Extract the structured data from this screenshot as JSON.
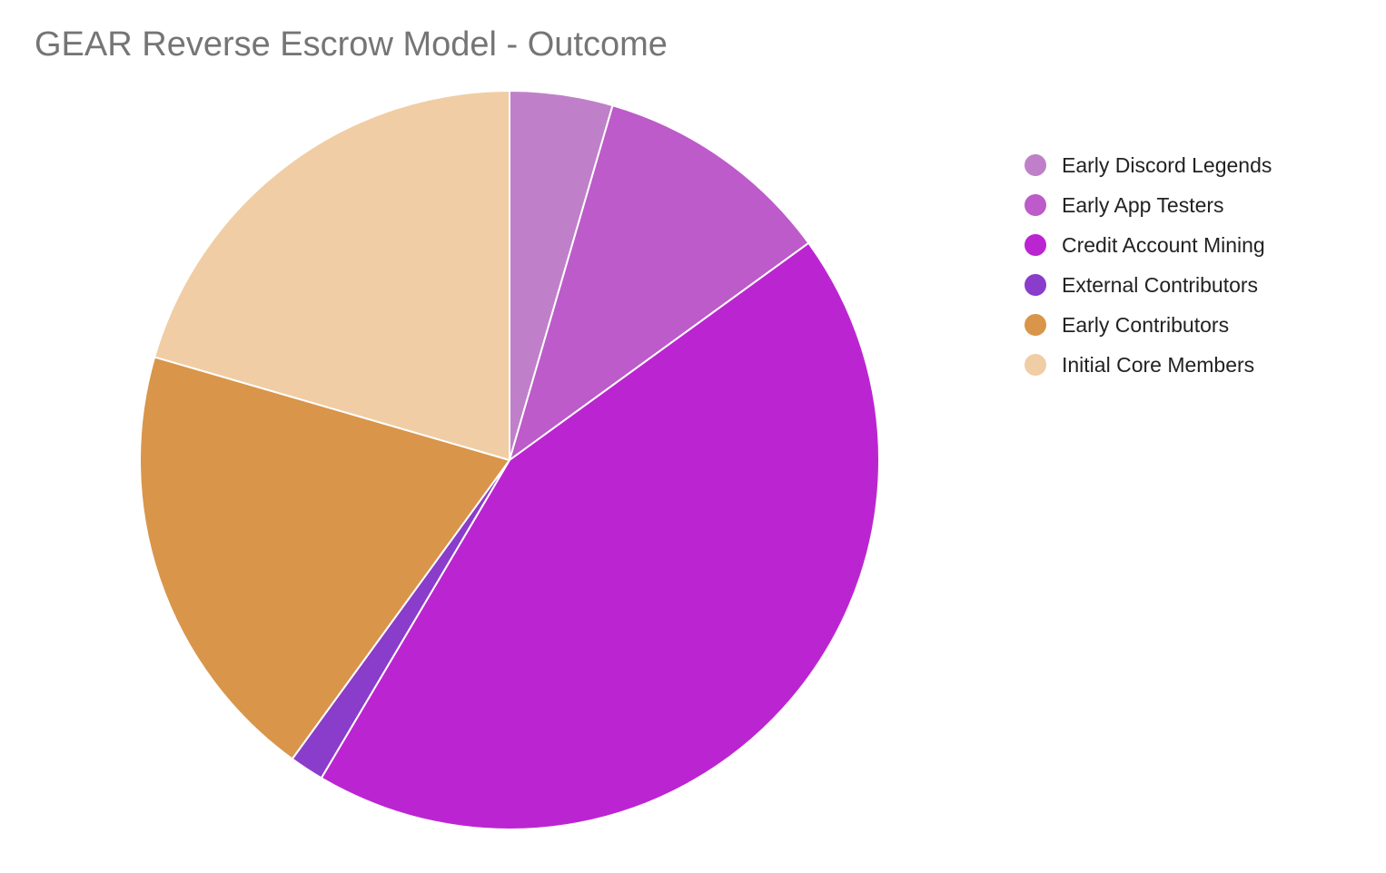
{
  "chart_data": {
    "type": "pie",
    "title": "GEAR Reverse Escrow Model - Outcome",
    "legend_position": "right",
    "slices": [
      {
        "label": "Early Discord Legends",
        "value": 4.5,
        "color": "#bf80c9"
      },
      {
        "label": "Early App Testers",
        "value": 10.5,
        "color": "#bc5bc9"
      },
      {
        "label": "Credit Account Mining",
        "value": 43.5,
        "color": "#bb25d1"
      },
      {
        "label": "External Contributors",
        "value": 1.5,
        "color": "#8a3ccb"
      },
      {
        "label": "Early Contributors",
        "value": 19.5,
        "color": "#d9954a"
      },
      {
        "label": "Initial Core Members",
        "value": 20.5,
        "color": "#f0cda4"
      }
    ]
  }
}
